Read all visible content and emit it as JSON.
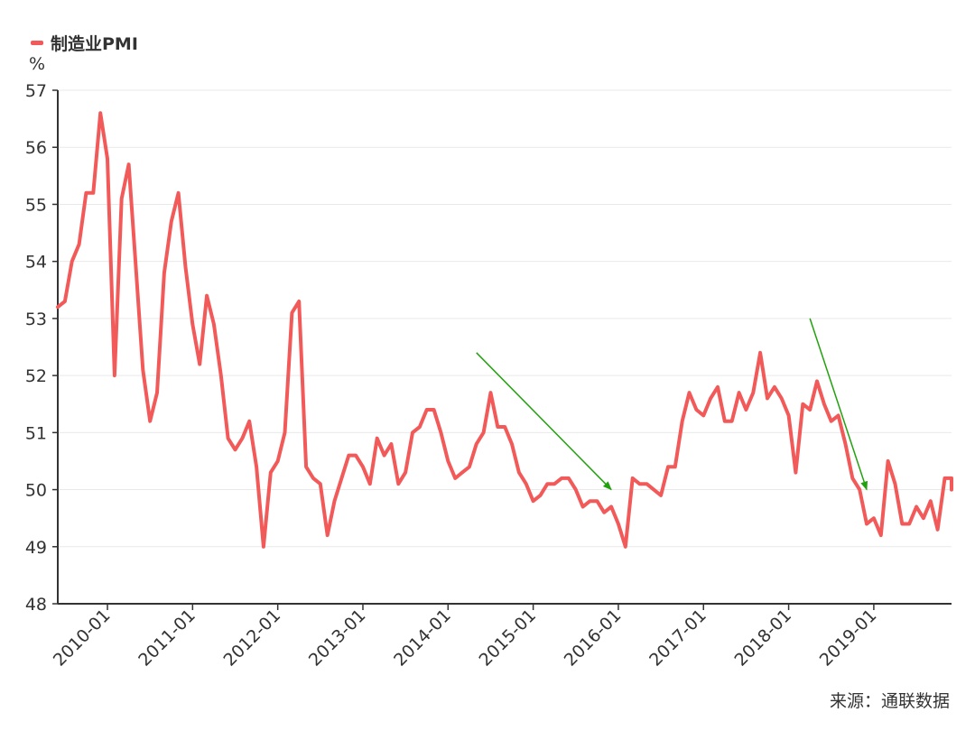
{
  "legend": {
    "label": "制造业PMI",
    "color": "#f25a5a"
  },
  "unit_label": "%",
  "source": "来源：通联数据",
  "chart_data": {
    "type": "line",
    "ylim": [
      48,
      57
    ],
    "yticks": [
      48,
      49,
      50,
      51,
      52,
      53,
      54,
      55,
      56,
      57
    ],
    "xticks": [
      "2010-01",
      "2011-01",
      "2012-01",
      "2013-01",
      "2014-01",
      "2015-01",
      "2016-01",
      "2017-01",
      "2018-01",
      "2019-01"
    ],
    "grid": true,
    "series": [
      {
        "name": "制造业PMI",
        "color": "#f25a5a",
        "x_start": "2009-06",
        "values": [
          53.2,
          53.3,
          54.0,
          54.3,
          55.2,
          55.2,
          56.6,
          55.8,
          52.0,
          55.1,
          55.7,
          53.9,
          52.1,
          51.2,
          51.7,
          53.8,
          54.7,
          55.2,
          53.9,
          52.9,
          52.2,
          53.4,
          52.9,
          52.0,
          50.9,
          50.7,
          50.9,
          51.2,
          50.4,
          49.0,
          50.3,
          50.5,
          51.0,
          53.1,
          53.3,
          50.4,
          50.2,
          50.1,
          49.2,
          49.8,
          50.2,
          50.6,
          50.6,
          50.4,
          50.1,
          50.9,
          50.6,
          50.8,
          50.1,
          50.3,
          51.0,
          51.1,
          51.4,
          51.4,
          51.0,
          50.5,
          50.2,
          50.3,
          50.4,
          50.8,
          51.0,
          51.7,
          51.1,
          51.1,
          50.8,
          50.3,
          50.1,
          49.8,
          49.9,
          50.1,
          50.1,
          50.2,
          50.2,
          50.0,
          49.7,
          49.8,
          49.8,
          49.6,
          49.7,
          49.4,
          49.0,
          50.2,
          50.1,
          50.1,
          50.0,
          49.9,
          50.4,
          50.4,
          51.2,
          51.7,
          51.4,
          51.3,
          51.6,
          51.8,
          51.2,
          51.2,
          51.7,
          51.4,
          51.7,
          52.4,
          51.6,
          51.8,
          51.6,
          51.3,
          50.3,
          51.5,
          51.4,
          51.9,
          51.5,
          51.2,
          51.3,
          50.8,
          50.2,
          50.0,
          49.4,
          49.5,
          49.2,
          50.5,
          50.1,
          49.4,
          49.4,
          49.7,
          49.5,
          49.8,
          49.3,
          50.2,
          50.2,
          50.0
        ]
      }
    ],
    "annotations": [
      {
        "type": "arrow",
        "color": "#22a10e",
        "from": [
          "2014-05",
          52.4
        ],
        "to": [
          "2015-12",
          50.0
        ]
      },
      {
        "type": "arrow",
        "color": "#22a10e",
        "from": [
          "2018-04",
          53.0
        ],
        "to": [
          "2018-12",
          50.0
        ]
      }
    ]
  }
}
